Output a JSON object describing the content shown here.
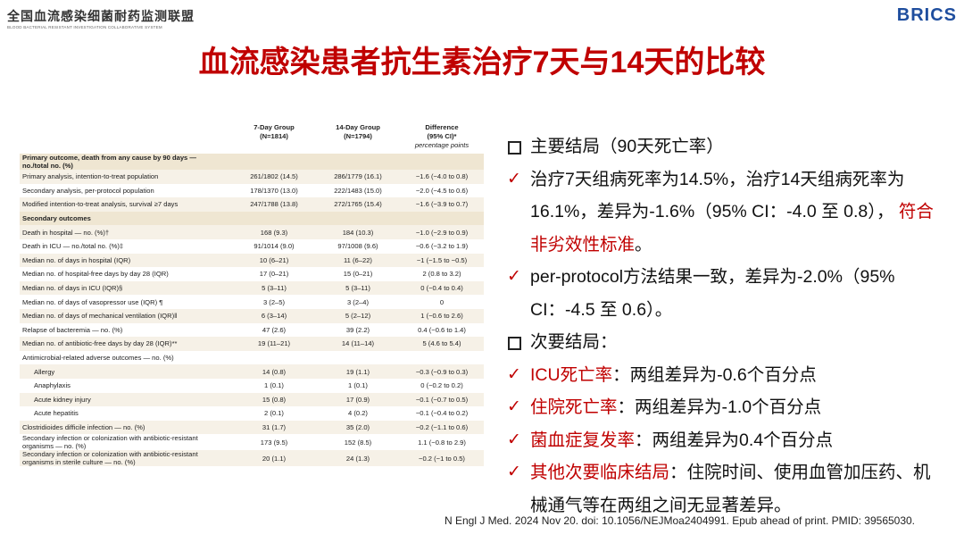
{
  "header": {
    "org_title": "全国血流感染细菌耐药监测联盟",
    "org_subtitle": "BLOOD BACTERIAL RESISTANT INVESTIGATION COLLABORATIVE SYSTEM",
    "logo": "BRICS"
  },
  "title": "血流感染患者抗生素治疗7天与14天的比较",
  "table": {
    "columns": [
      {
        "title": "7-Day Group",
        "n": "(N=1814)"
      },
      {
        "title": "14-Day Group",
        "n": "(N=1794)"
      },
      {
        "title": "Difference",
        "n": "(95% CI)*",
        "unit": "percentage points"
      }
    ],
    "rows": [
      {
        "label": "Primary outcome, death from any cause by 90 days — no./total no. (%)",
        "section": true
      },
      {
        "label": "Primary analysis, intention-to-treat population",
        "cells": [
          "261/1802 (14.5)",
          "286/1779 (16.1)",
          "−1.6 (−4.0 to 0.8)"
        ]
      },
      {
        "label": "Secondary analysis, per-protocol population",
        "cells": [
          "178/1370 (13.0)",
          "222/1483 (15.0)",
          "−2.0 (−4.5 to 0.6)"
        ]
      },
      {
        "label": "Modified intention-to-treat analysis, survival ≥7 days",
        "cells": [
          "247/1788 (13.8)",
          "272/1765 (15.4)",
          "−1.6 (−3.9 to 0.7)"
        ]
      },
      {
        "label": "Secondary outcomes",
        "section": true
      },
      {
        "label": "Death in hospital — no. (%)†",
        "cells": [
          "168 (9.3)",
          "184 (10.3)",
          "−1.0 (−2.9 to 0.9)"
        ]
      },
      {
        "label": "Death in ICU — no./total no. (%)‡",
        "cells": [
          "91/1014 (9.0)",
          "97/1008 (9.6)",
          "−0.6 (−3.2 to 1.9)"
        ]
      },
      {
        "label": "Median no. of days in hospital (IQR)",
        "cells": [
          "10 (6–21)",
          "11 (6–22)",
          "−1 (−1.5 to −0.5)"
        ]
      },
      {
        "label": "Median no. of hospital-free days by day 28 (IQR)",
        "cells": [
          "17 (0–21)",
          "15 (0–21)",
          "2 (0.8 to 3.2)"
        ]
      },
      {
        "label": "Median no. of days in ICU (IQR)§",
        "cells": [
          "5 (3–11)",
          "5 (3–11)",
          "0 (−0.4 to 0.4)"
        ]
      },
      {
        "label": "Median no. of days of vasopressor use (IQR) ¶",
        "cells": [
          "3 (2–5)",
          "3 (2–4)",
          "0"
        ]
      },
      {
        "label": "Median no. of days of mechanical ventilation (IQR)‖",
        "cells": [
          "6 (3–14)",
          "5 (2–12)",
          "1 (−0.6 to 2.6)"
        ]
      },
      {
        "label": "Relapse of bacteremia — no. (%)",
        "cells": [
          "47 (2.6)",
          "39 (2.2)",
          "0.4 (−0.6 to 1.4)"
        ]
      },
      {
        "label": "Median no. of antibiotic-free days by day 28 (IQR)**",
        "cells": [
          "19 (11–21)",
          "14 (11–14)",
          "5 (4.6 to 5.4)"
        ]
      },
      {
        "label": "Antimicrobial-related adverse outcomes — no. (%)"
      },
      {
        "label": "Allergy",
        "indent": true,
        "cells": [
          "14 (0.8)",
          "19 (1.1)",
          "−0.3 (−0.9 to 0.3)"
        ]
      },
      {
        "label": "Anaphylaxis",
        "indent": true,
        "cells": [
          "1 (0.1)",
          "1 (0.1)",
          "0 (−0.2 to 0.2)"
        ]
      },
      {
        "label": "Acute kidney injury",
        "indent": true,
        "cells": [
          "15 (0.8)",
          "17 (0.9)",
          "−0.1 (−0.7 to 0.5)"
        ]
      },
      {
        "label": "Acute hepatitis",
        "indent": true,
        "cells": [
          "2 (0.1)",
          "4 (0.2)",
          "−0.1 (−0.4 to 0.2)"
        ]
      },
      {
        "label": "Clostridioides difficile infection — no. (%)",
        "cells": [
          "31 (1.7)",
          "35 (2.0)",
          "−0.2 (−1.1 to 0.6)"
        ]
      },
      {
        "label": "Secondary infection or colonization with antibiotic-resistant organisms — no. (%)",
        "cells": [
          "173 (9.5)",
          "152 (8.5)",
          "1.1 (−0.8 to 2.9)"
        ]
      },
      {
        "label": "Secondary infection or colonization with antibiotic-resistant organisms in sterile culture — no. (%)",
        "cells": [
          "20 (1.1)",
          "24 (1.3)",
          "−0.2 (−1 to 0.5)"
        ]
      }
    ]
  },
  "bullets": [
    {
      "marker": "square",
      "parts": [
        {
          "text": "主要结局（90天死亡率）"
        }
      ]
    },
    {
      "marker": "check",
      "parts": [
        {
          "text": "治疗7天组病死率为14.5%，治疗14天组病死率为16.1%，差异为-1.6%（95% CI：-4.0 至 0.8）， "
        },
        {
          "text": "符合非劣效性标准",
          "highlight": true
        },
        {
          "text": "。"
        }
      ]
    },
    {
      "marker": "check",
      "parts": [
        {
          "text": "per-protocol方法结果一致，差异为-2.0%（95% CI：-4.5 至 0.6）。"
        }
      ]
    },
    {
      "marker": "square",
      "parts": [
        {
          "text": "次要结局："
        }
      ]
    },
    {
      "marker": "check",
      "parts": [
        {
          "text": "ICU死亡率",
          "highlight": true
        },
        {
          "text": "：两组差异为-0.6个百分点"
        }
      ]
    },
    {
      "marker": "check",
      "parts": [
        {
          "text": "住院死亡率",
          "highlight": true
        },
        {
          "text": "：两组差异为-1.0个百分点"
        }
      ]
    },
    {
      "marker": "check",
      "parts": [
        {
          "text": "菌血症复发率",
          "highlight": true
        },
        {
          "text": "：两组差异为0.4个百分点"
        }
      ]
    },
    {
      "marker": "check",
      "parts": [
        {
          "text": "其他次要临床结局",
          "highlight": true
        },
        {
          "text": "：住院时间、使用血管加压药、机械通气等在两组之间无显著差异。"
        }
      ]
    }
  ],
  "citation": "N Engl J Med. 2024 Nov 20. doi: 10.1056/NEJMoa2404991. Epub ahead of print. PMID: 39565030."
}
